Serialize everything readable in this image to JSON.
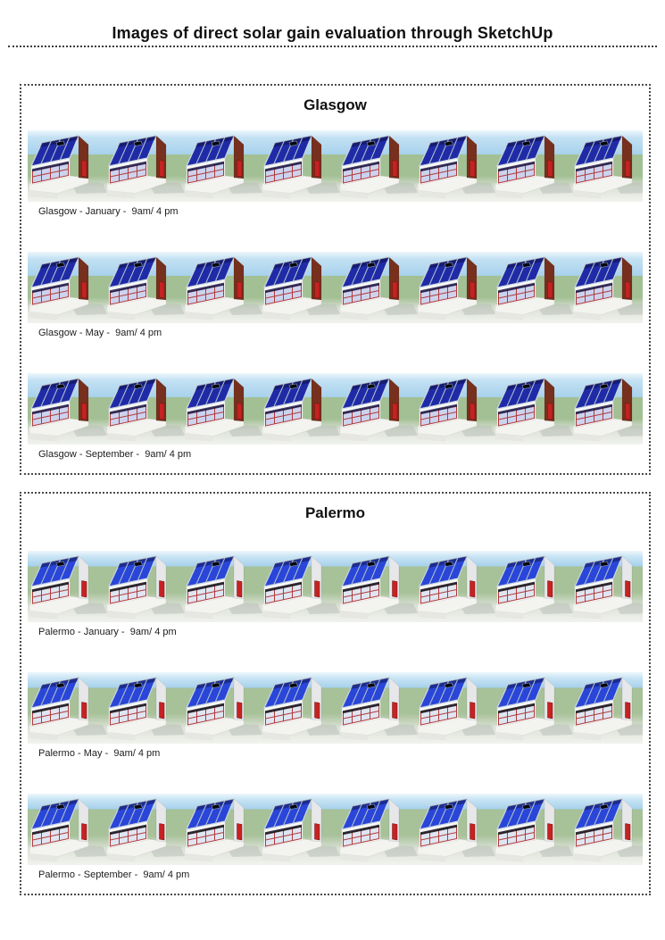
{
  "page": {
    "title": "Images of direct solar gain evaluation through SketchUp"
  },
  "sections": [
    {
      "title": "Glasgow",
      "rows": [
        {
          "caption": "Glasgow - January -  9am/ 4 pm"
        },
        {
          "caption": "Glasgow - May -  9am/ 4 pm"
        },
        {
          "caption": "Glasgow - September -  9am/ 4 pm"
        }
      ]
    },
    {
      "title": "Palermo",
      "rows": [
        {
          "caption": "Palermo - January -  9am/ 4 pm"
        },
        {
          "caption": "Palermo - May -  9am/ 4 pm"
        },
        {
          "caption": "Palermo - September -  9am/ 4 pm"
        }
      ]
    }
  ],
  "figure": {
    "houses_per_row": 8,
    "icons": [
      "house-render"
    ],
    "colors": {
      "sky": "#a8d2ec",
      "ground": "#a3c095",
      "roof_panels_glasgow": "#1f2ba6",
      "roof_panels_palermo": "#2946d8",
      "gable_glasgow": "#76301d",
      "gable_palermo": "#e7e7ea",
      "door": "#c62222",
      "window_frame": "#b03a3a"
    }
  }
}
